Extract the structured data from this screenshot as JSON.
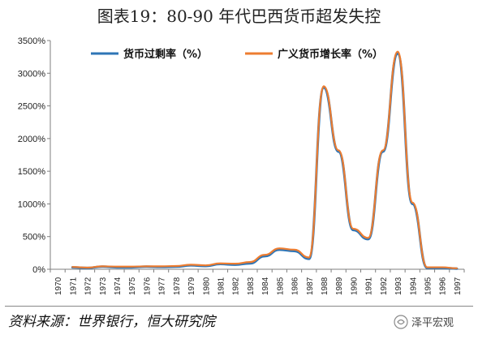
{
  "title": "图表19：80-90 年代巴西货币超发失控",
  "source": "资料来源：世界银行，恒大研究院",
  "brand": "泽平宏观",
  "brand_icon": "wechat-channel-icon",
  "chart_data": {
    "type": "line",
    "x": [
      "1970",
      "1971",
      "1972",
      "1973",
      "1974",
      "1975",
      "1976",
      "1977",
      "1978",
      "1979",
      "1980",
      "1981",
      "1982",
      "1983",
      "1984",
      "1985",
      "1986",
      "1987",
      "1988",
      "1989",
      "1990",
      "1991",
      "1992",
      "1993",
      "1994",
      "1995",
      "1996",
      "1997"
    ],
    "ylim": [
      0,
      3500
    ],
    "yticks": [
      "0%",
      "500%",
      "1000%",
      "1500%",
      "2000%",
      "2500%",
      "3000%",
      "3500%"
    ],
    "legend_position": "top",
    "grid": false,
    "series": [
      {
        "name": "货币过剩率（%）",
        "color": "#2e75b6",
        "values": [
          null,
          30,
          20,
          40,
          30,
          30,
          40,
          35,
          40,
          60,
          50,
          80,
          70,
          90,
          200,
          300,
          280,
          160,
          2780,
          1800,
          600,
          460,
          1800,
          3300,
          1000,
          20,
          20,
          10
        ]
      },
      {
        "name": "广义货币增长率（%）",
        "color": "#ed7d31",
        "values": [
          null,
          35,
          25,
          45,
          40,
          40,
          45,
          45,
          50,
          70,
          60,
          90,
          85,
          110,
          220,
          320,
          300,
          180,
          2800,
          1820,
          620,
          480,
          1820,
          3330,
          1020,
          30,
          30,
          15
        ]
      }
    ]
  }
}
